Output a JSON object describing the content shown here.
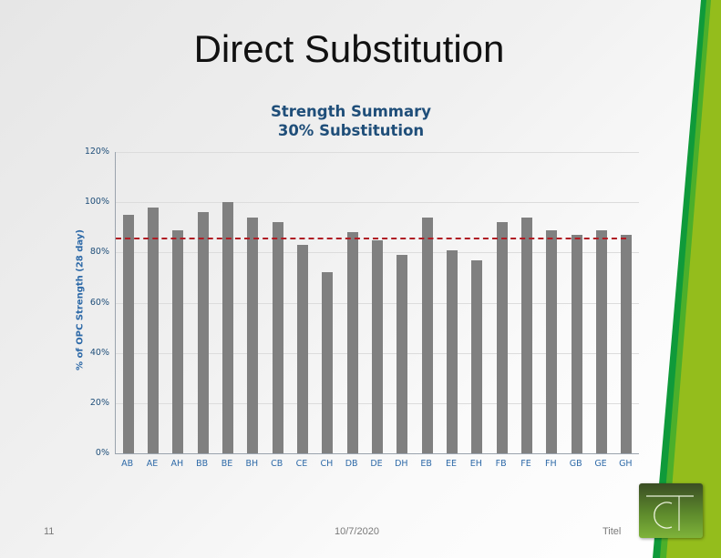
{
  "slide": {
    "title": "Direct Substitution",
    "footer": {
      "page_number": "11",
      "date": "10/7/2020",
      "label": "Titel"
    },
    "accent_colors": {
      "stripe_dark_green": "#0f9a3a",
      "stripe_light_green": "#8fba1a",
      "logo_green": "#5d8a2c"
    }
  },
  "chart_data": {
    "type": "bar",
    "title": "Strength Summary\n30% Substitution",
    "title_lines": [
      "Strength Summary",
      "30% Substitution"
    ],
    "xlabel": "",
    "ylabel": "% of OPC Strength (28 day)",
    "ylim": [
      0,
      120
    ],
    "yticks": [
      "0%",
      "20%",
      "40%",
      "60%",
      "80%",
      "100%",
      "120%"
    ],
    "grid": true,
    "categories": [
      "AB",
      "AE",
      "AH",
      "BB",
      "BE",
      "BH",
      "CB",
      "CE",
      "CH",
      "DB",
      "DE",
      "DH",
      "EB",
      "EE",
      "EH",
      "FB",
      "FE",
      "FH",
      "GB",
      "GE",
      "GH"
    ],
    "series": [
      {
        "name": "% of OPC Strength",
        "color": "#808080",
        "values": [
          95,
          98,
          89,
          96,
          100,
          94,
          92,
          83,
          72,
          88,
          85,
          79,
          94,
          81,
          77,
          92,
          94,
          89,
          87,
          89,
          87
        ]
      }
    ],
    "reference_line": {
      "value": 86,
      "style": "dashed",
      "color": "#b01c24"
    },
    "legend": null
  }
}
